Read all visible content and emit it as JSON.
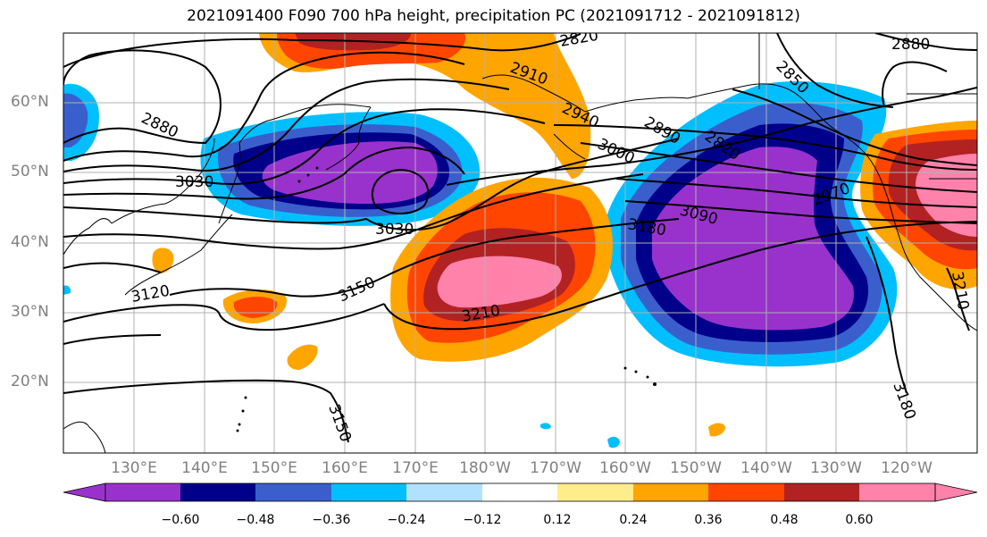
{
  "title": "2021091400 F090 700 hPa height, precipitation PC (2021091712 - 2021091812)",
  "lat_labels": [
    "60°N",
    "50°N",
    "40°N",
    "30°N",
    "20°N"
  ],
  "lon_labels": [
    "130°E",
    "140°E",
    "150°E",
    "160°E",
    "170°E",
    "180°W",
    "170°W",
    "160°W",
    "150°W",
    "140°W",
    "130°W",
    "120°W"
  ],
  "contour_labels": [
    "2820",
    "2880",
    "2910",
    "2850",
    "2880",
    "2940",
    "2890",
    "2820",
    "3000",
    "3030",
    "3030",
    "2970",
    "3090",
    "3180",
    "3120",
    "3150",
    "3210",
    "3150",
    "3180",
    "3210"
  ],
  "colorbar": {
    "ticks": [
      "−0.60",
      "−0.48",
      "−0.36",
      "−0.24",
      "−0.12",
      "0.12",
      "0.24",
      "0.36",
      "0.48",
      "0.60"
    ],
    "colors": [
      "#9932cc",
      "#00008b",
      "#3a5fcd",
      "#00bfff",
      "#b0e2ff",
      "#ffffff",
      "#ffec8b",
      "#ffa500",
      "#ff4500",
      "#b22222",
      "#ff82ab"
    ]
  },
  "colors": {
    "coast": "#000000",
    "grid": "#b0b0b0",
    "axis_label": "#808080"
  }
}
